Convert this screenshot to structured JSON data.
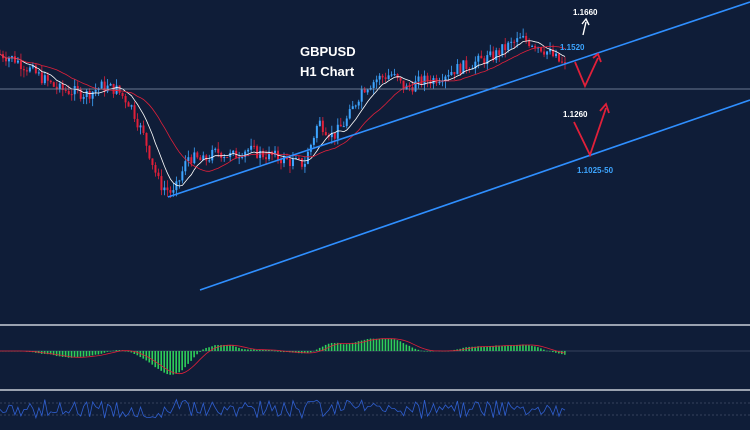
{
  "title": {
    "symbol": "GBPUSD",
    "timeframe": "H1 Chart"
  },
  "levels": [
    {
      "id": "level-11660",
      "label": "1.1660",
      "color": "#ffffff"
    },
    {
      "id": "level-11520",
      "label": "1.1520",
      "color": "#3da5ff"
    },
    {
      "id": "level-11260",
      "label": "1.1260",
      "color": "#ffffff"
    },
    {
      "id": "level-11025",
      "label": "1.1025-50",
      "color": "#3da5ff"
    }
  ],
  "colors": {
    "background": "#0f1d38",
    "bull_candle": "#3da5ff",
    "bear_candle": "#e0203a",
    "channel": "#2f8fff",
    "histogram": "#2fcf5a",
    "forecast_arrow": "#e0203a"
  },
  "chart_data": {
    "type": "candlestick",
    "symbol": "GBPUSD",
    "timeframe": "H1",
    "price_path": [
      1.144,
      1.142,
      1.138,
      1.134,
      1.13,
      1.129,
      1.128,
      1.131,
      1.13,
      1.124,
      1.11,
      1.092,
      1.088,
      1.103,
      1.101,
      1.105,
      1.103,
      1.106,
      1.104,
      1.103,
      1.101,
      1.1,
      1.117,
      1.111,
      1.118,
      1.13,
      1.134,
      1.136,
      1.13,
      1.133,
      1.134,
      1.137,
      1.139,
      1.141,
      1.143,
      1.147,
      1.15,
      1.148,
      1.144,
      1.139
    ],
    "channel": {
      "upper_line": "resistance",
      "lower_line": "support"
    },
    "key_levels": [
      1.166,
      1.152,
      1.126,
      1.1025
    ],
    "forecast": "drop toward channel support 1.1025-50 then rebound toward 1.1520 / 1.1660",
    "indicators": [
      "moving averages",
      "MACD histogram",
      "oscillator"
    ]
  }
}
